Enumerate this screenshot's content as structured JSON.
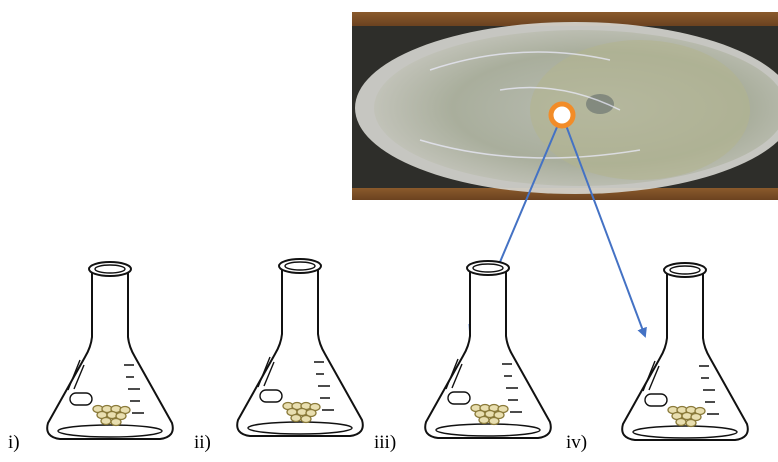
{
  "labels": [
    "i)",
    "ii)",
    "iii)",
    "iv)"
  ]
}
